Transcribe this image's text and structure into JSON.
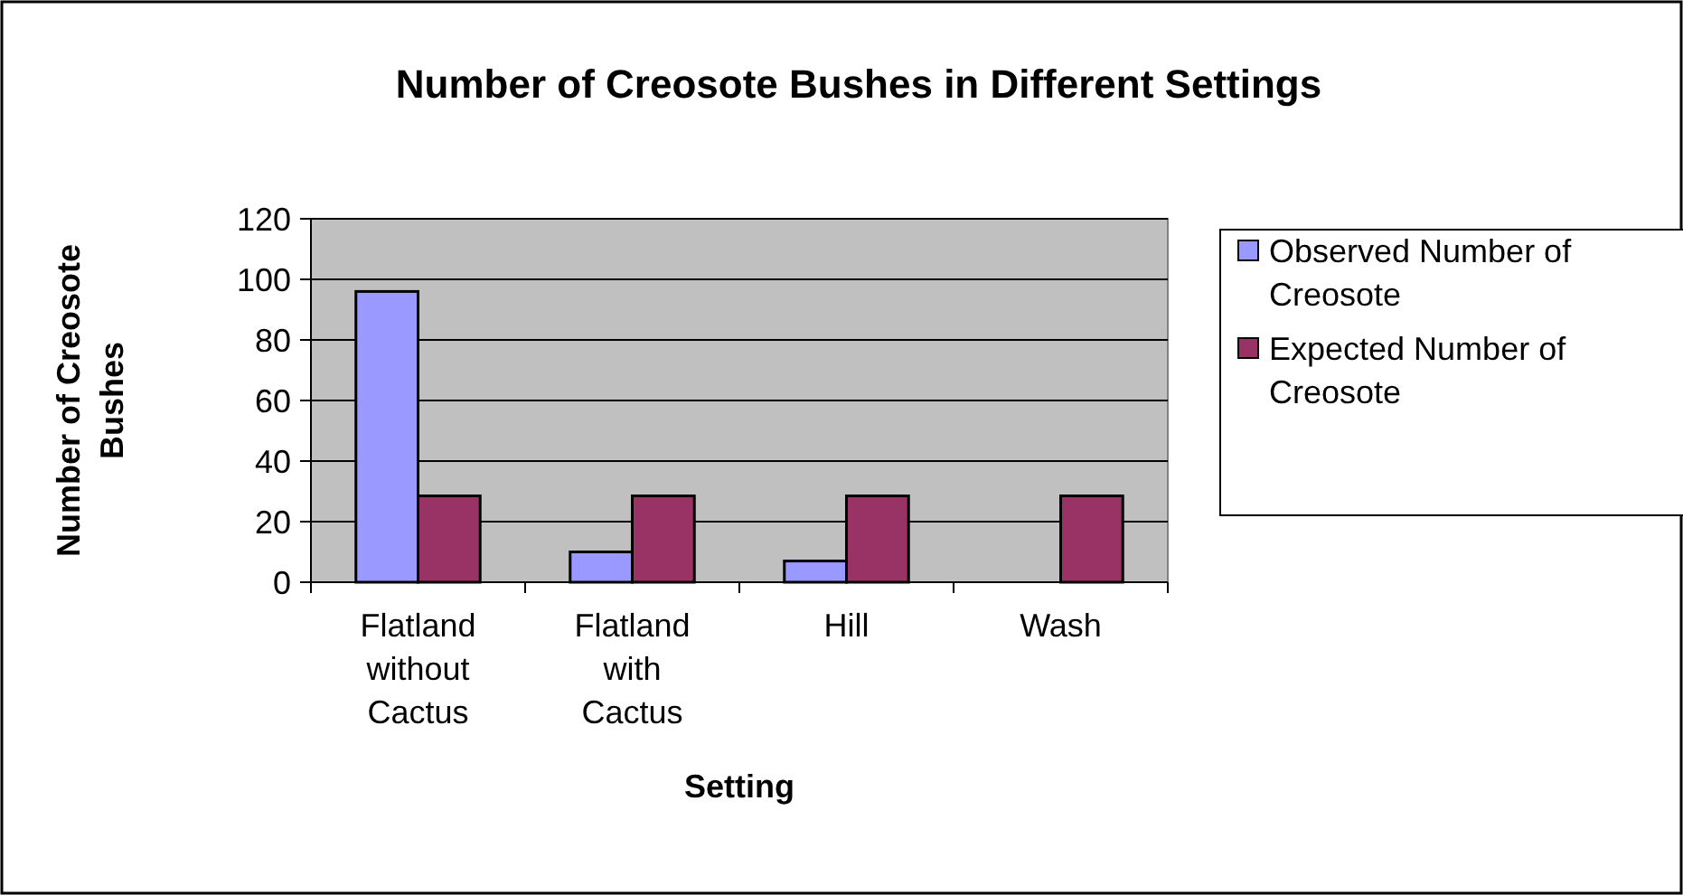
{
  "chart_data": {
    "type": "bar",
    "title": "Number of Creosote Bushes in Different Settings",
    "xlabel": "Setting",
    "ylabel": "Number of Creosote Bushes",
    "categories": [
      "Flatland without Cactus",
      "Flatland with Cactus",
      "Hill",
      "Wash"
    ],
    "series": [
      {
        "name": "Observed Number of Creosote",
        "color": "#9999ff",
        "values": [
          96,
          10,
          7,
          0
        ]
      },
      {
        "name": "Expected Number of Creosote",
        "color": "#993366",
        "values": [
          28.5,
          28.5,
          28.5,
          28.5
        ]
      }
    ],
    "ylim": [
      0,
      120
    ],
    "yticks": [
      0,
      20,
      40,
      60,
      80,
      100,
      120
    ],
    "grid": "y",
    "legend": "right"
  }
}
